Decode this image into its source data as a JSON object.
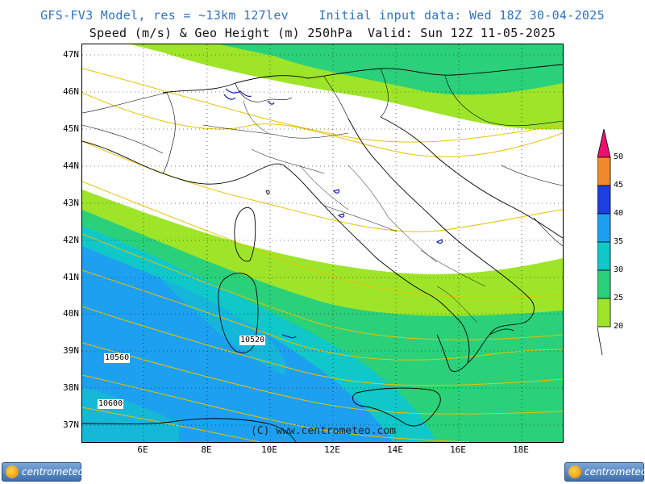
{
  "header": {
    "line1": "GFS-FV3 Model, res = ~13km 127lev    Initial input data: Wed 18Z 30-04-2025",
    "line2": "Speed (m/s) & Geo Height (m) 250hPa  Valid: Sun 12Z 11-05-2025"
  },
  "map": {
    "lat_labels": [
      "47N",
      "46N",
      "45N",
      "44N",
      "43N",
      "42N",
      "41N",
      "40N",
      "39N",
      "38N",
      "37N"
    ],
    "lon_labels": [
      "6E",
      "8E",
      "10E",
      "12E",
      "14E",
      "16E",
      "18E"
    ],
    "contour_labels": [
      "10520",
      "10560",
      "10600"
    ],
    "copyright": "(C) www.centrometeo.com"
  },
  "legend": {
    "levels": [
      "20",
      "25",
      "30",
      "35",
      "40",
      "45",
      "50"
    ],
    "colors": [
      "#9ee52a",
      "#2bd07a",
      "#10c8c8",
      "#1ea0f0",
      "#1e3fe0",
      "#f08a28",
      "#ee1070"
    ]
  },
  "logos": {
    "left": "centrometeo",
    "right": "centrometeo"
  }
}
